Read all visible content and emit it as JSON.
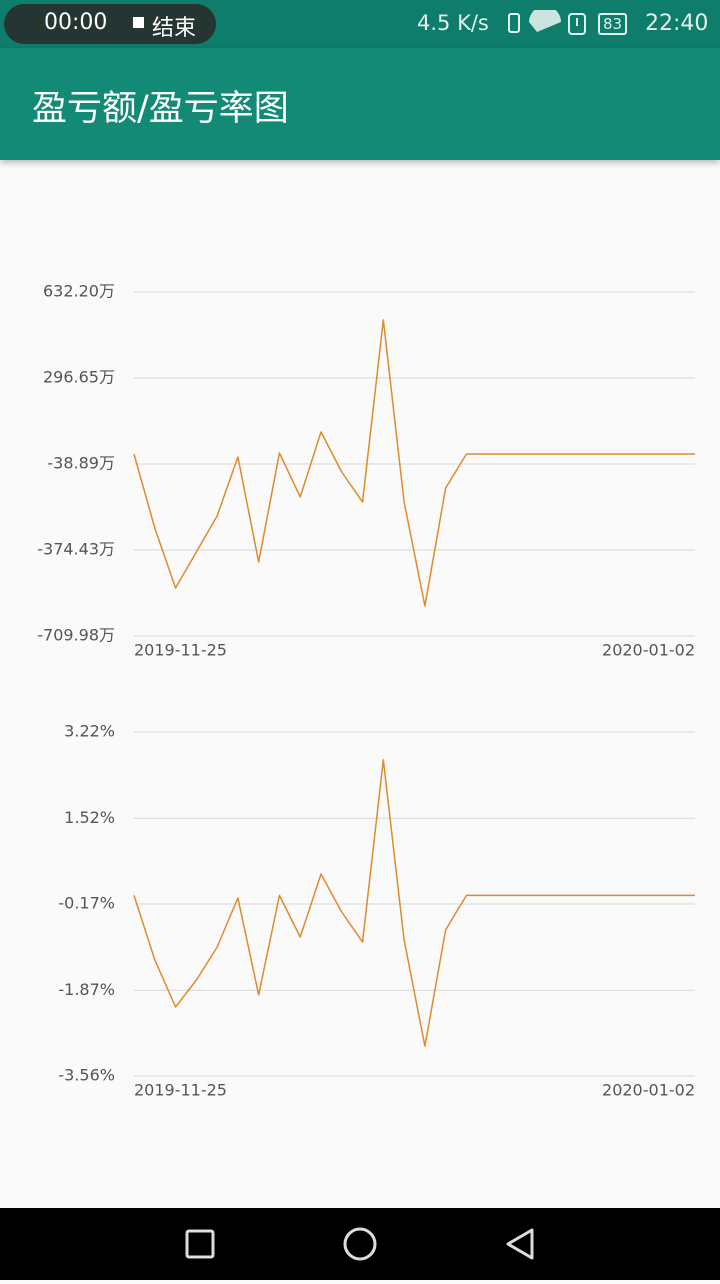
{
  "status_bar": {
    "recording_time": "00:00",
    "end_label": "结束",
    "network_speed": "4.5 K/s",
    "battery": "83",
    "clock": "22:40"
  },
  "app_bar": {
    "title": "盈亏额/盈亏率图"
  },
  "chart_data": [
    {
      "type": "line",
      "color": "#e08a2c",
      "grid": true,
      "categories": [
        "2019-11-25",
        null,
        null,
        null,
        null,
        null,
        null,
        null,
        null,
        null,
        null,
        null,
        null,
        null,
        null,
        null,
        null,
        null,
        null,
        null,
        null,
        null,
        null,
        null,
        null,
        null,
        null,
        "2020-01-02"
      ],
      "values": [
        0,
        -288.6,
        -522.7,
        -382.2,
        -241.8,
        -11.6,
        -421.3,
        4,
        -167.6,
        86,
        -70.1,
        -187.2,
        523,
        -187,
        -592.9,
        -132.5,
        0,
        0,
        0,
        0,
        0,
        0,
        0,
        0,
        0,
        0,
        0,
        0
      ],
      "ylim": [
        -709.98,
        632.2
      ],
      "yticks": [
        {
          "value": -709.98,
          "label": "-709.98万"
        },
        {
          "value": -374.43,
          "label": "-374.43万"
        },
        {
          "value": -38.89,
          "label": "-38.89万"
        },
        {
          "value": 296.65,
          "label": "296.65万"
        },
        {
          "value": 632.2,
          "label": "632.20万"
        }
      ]
    },
    {
      "type": "line",
      "color": "#e08a2c",
      "grid": true,
      "categories": [
        "2019-11-25",
        null,
        null,
        null,
        null,
        null,
        null,
        null,
        null,
        null,
        null,
        null,
        null,
        null,
        null,
        null,
        null,
        null,
        null,
        null,
        null,
        null,
        null,
        null,
        null,
        null,
        null,
        "2020-01-02"
      ],
      "values": [
        0,
        -1.27,
        -2.2,
        -1.67,
        -1.02,
        -0.05,
        -1.96,
        0,
        -0.82,
        0.42,
        -0.33,
        -0.92,
        2.67,
        -0.88,
        -2.97,
        -0.68,
        0,
        0,
        0,
        0,
        0,
        0,
        0,
        0,
        0,
        0,
        0,
        0
      ],
      "ylim": [
        -3.56,
        3.22
      ],
      "yticks": [
        {
          "value": -3.56,
          "label": "-3.56%"
        },
        {
          "value": -1.87,
          "label": "-1.87%"
        },
        {
          "value": -0.17,
          "label": "-0.17%"
        },
        {
          "value": 1.52,
          "label": "1.52%"
        },
        {
          "value": 3.22,
          "label": "3.22%"
        }
      ]
    }
  ]
}
